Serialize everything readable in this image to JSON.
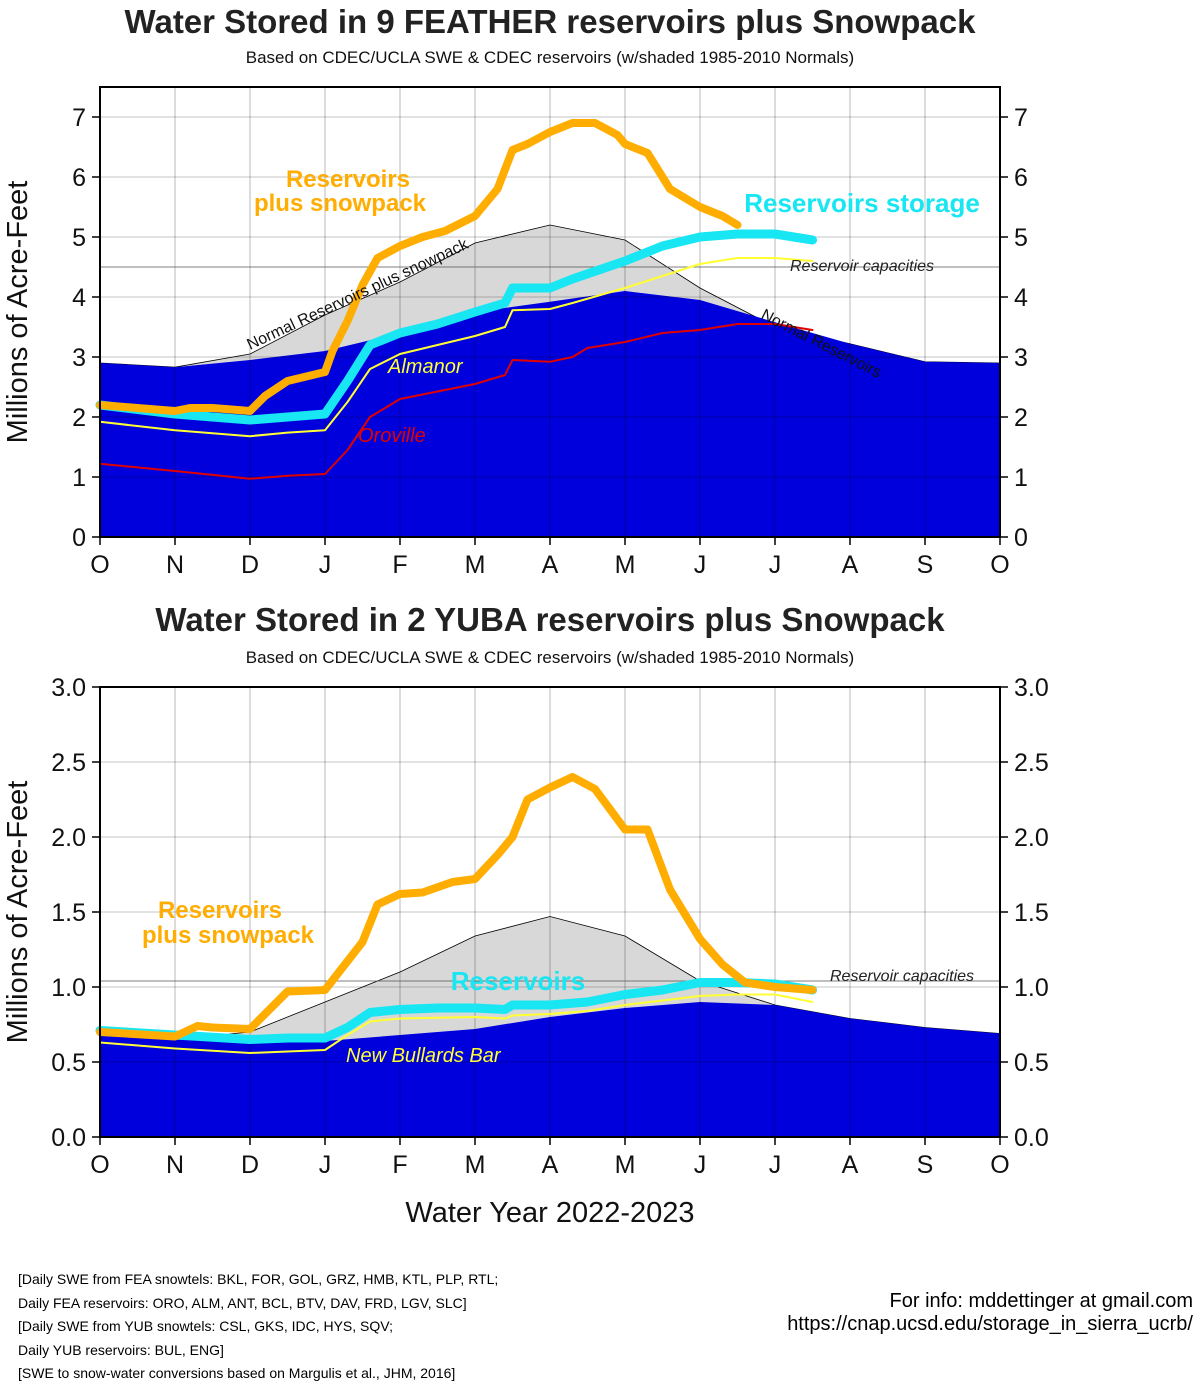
{
  "chart_data": [
    {
      "type": "area",
      "title": "Water Stored in 9 FEATHER reservoirs plus Snowpack",
      "subtitle": "Based on CDEC/UCLA SWE & CDEC reservoirs (w/shaded 1985-2010 Normals)",
      "ylabel": "Millions of Acre-Feet",
      "ylim": [
        0,
        7.5
      ],
      "yticks": [
        "0",
        "1",
        "2",
        "3",
        "4",
        "5",
        "6",
        "7"
      ],
      "xticks": [
        "O",
        "N",
        "D",
        "J",
        "F",
        "M",
        "A",
        "M",
        "J",
        "J",
        "A",
        "S",
        "O"
      ],
      "x_range_months": [
        0,
        12
      ],
      "capacity_value": 4.5,
      "grid": "on",
      "colors": {
        "normal_reservoirs": "#0000dd",
        "normal_plus_snow": "#d8d8d8",
        "plus_snowpack": "#ffad00",
        "storage": "#18e6f2",
        "main_reservoir": "#ffff33",
        "second_reservoir": "#e00000"
      },
      "series": [
        {
          "name": "Normal Reservoirs",
          "x": [
            0,
            1,
            2,
            3,
            4,
            5,
            6,
            7,
            8,
            9,
            10,
            11,
            12
          ],
          "values": [
            2.9,
            2.83,
            2.95,
            3.1,
            3.4,
            3.75,
            3.92,
            4.1,
            3.95,
            3.58,
            3.22,
            2.92,
            2.9
          ]
        },
        {
          "name": "Normal Reservoirs plus snowpack",
          "x": [
            0,
            1,
            2,
            3,
            4,
            5,
            6,
            7,
            8,
            9,
            10,
            11,
            12
          ],
          "values": [
            2.9,
            2.83,
            3.05,
            3.7,
            4.25,
            4.9,
            5.2,
            4.95,
            4.15,
            3.5,
            3.22,
            2.92,
            2.9
          ]
        },
        {
          "name": "Reservoirs plus snowpack",
          "x": [
            0,
            0.5,
            1,
            1.2,
            1.5,
            2,
            2.2,
            2.5,
            3,
            3.1,
            3.3,
            3.5,
            3.7,
            4,
            4.3,
            4.6,
            5,
            5.3,
            5.5,
            5.7,
            6,
            6.3,
            6.6,
            6.9,
            7,
            7.3,
            7.6,
            8,
            8.3,
            8.5
          ],
          "values": [
            2.2,
            2.15,
            2.1,
            2.15,
            2.15,
            2.1,
            2.35,
            2.6,
            2.75,
            3.1,
            3.6,
            4.2,
            4.65,
            4.85,
            5.0,
            5.1,
            5.35,
            5.8,
            6.45,
            6.55,
            6.75,
            6.9,
            6.9,
            6.7,
            6.55,
            6.4,
            5.8,
            5.5,
            5.35,
            5.2
          ]
        },
        {
          "name": "Reservoirs storage",
          "x": [
            0,
            1,
            2,
            2.5,
            3,
            3.3,
            3.6,
            4,
            4.5,
            5,
            5.4,
            5.5,
            6,
            6.3,
            7,
            7.5,
            8,
            8.5,
            9,
            9.5
          ],
          "values": [
            2.2,
            2.05,
            1.95,
            2.0,
            2.05,
            2.6,
            3.2,
            3.4,
            3.55,
            3.75,
            3.9,
            4.15,
            4.15,
            4.3,
            4.6,
            4.85,
            5.0,
            5.05,
            5.05,
            4.95
          ]
        },
        {
          "name": "Reservoir capacities",
          "x": [
            0,
            12
          ],
          "values": [
            4.5,
            4.5
          ]
        },
        {
          "name": "Almanor",
          "x": [
            0,
            1,
            2,
            2.5,
            3,
            3.3,
            3.6,
            4,
            5,
            5.4,
            5.5,
            6,
            6.3,
            7,
            7.5,
            8,
            8.5,
            9,
            9.5
          ],
          "values": [
            1.92,
            1.78,
            1.68,
            1.74,
            1.78,
            2.25,
            2.8,
            3.05,
            3.35,
            3.5,
            3.78,
            3.8,
            3.9,
            4.15,
            4.35,
            4.55,
            4.65,
            4.65,
            4.6
          ]
        },
        {
          "name": "Oroville",
          "x": [
            0,
            1,
            2,
            2.5,
            3,
            3.3,
            3.6,
            4,
            5,
            5.4,
            5.5,
            6,
            6.3,
            6.5,
            7,
            7.5,
            8,
            8.5,
            9,
            9.5
          ],
          "values": [
            1.22,
            1.1,
            0.97,
            1.02,
            1.05,
            1.45,
            2.0,
            2.3,
            2.55,
            2.7,
            2.95,
            2.92,
            3.0,
            3.15,
            3.25,
            3.4,
            3.45,
            3.55,
            3.55,
            3.45
          ]
        }
      ],
      "annotations": [
        "Reservoirs",
        "plus snowpack",
        "Reservoirs storage",
        "Reservoir capacities",
        "Normal Reservoirs plus snowpack",
        "Normal Reservoirs",
        "Almanor",
        "Oroville"
      ]
    },
    {
      "type": "area",
      "title": "Water Stored in 2 YUBA reservoirs plus Snowpack",
      "subtitle": "Based on CDEC/UCLA SWE & CDEC reservoirs (w/shaded 1985-2010 Normals)",
      "ylabel": "Millions of Acre-Feet",
      "xlabel": "Water Year 2022-2023",
      "ylim": [
        0,
        3.0
      ],
      "yticks": [
        "0.0",
        "0.5",
        "1.0",
        "1.5",
        "2.0",
        "2.5",
        "3.0"
      ],
      "xticks": [
        "O",
        "N",
        "D",
        "J",
        "F",
        "M",
        "A",
        "M",
        "J",
        "J",
        "A",
        "S",
        "O"
      ],
      "x_range_months": [
        0,
        12
      ],
      "capacity_value": 1.04,
      "grid": "on",
      "colors": {
        "normal_reservoirs": "#0000dd",
        "normal_plus_snow": "#d8d8d8",
        "plus_snowpack": "#ffad00",
        "storage": "#18e6f2",
        "main_reservoir": "#ffff33"
      },
      "series": [
        {
          "name": "Normal Reservoirs",
          "x": [
            0,
            1,
            2,
            3,
            4,
            5,
            6,
            7,
            8,
            9,
            10,
            11,
            12
          ],
          "values": [
            0.68,
            0.65,
            0.63,
            0.64,
            0.68,
            0.72,
            0.8,
            0.86,
            0.9,
            0.88,
            0.79,
            0.73,
            0.69
          ]
        },
        {
          "name": "Normal Reservoirs plus snowpack",
          "x": [
            0,
            1,
            2,
            3,
            4,
            5,
            6,
            7,
            8,
            9,
            10,
            11,
            12
          ],
          "values": [
            0.68,
            0.65,
            0.7,
            0.9,
            1.1,
            1.34,
            1.47,
            1.34,
            1.04,
            0.88,
            0.79,
            0.73,
            0.69
          ]
        },
        {
          "name": "Reservoirs plus snowpack",
          "x": [
            0,
            1,
            1.3,
            1.5,
            2,
            2.3,
            2.5,
            3,
            3.5,
            3.7,
            4,
            4.3,
            4.7,
            5,
            5.3,
            5.5,
            5.7,
            6,
            6.3,
            6.6,
            7,
            7.3,
            7.6,
            8,
            8.3,
            8.6,
            9,
            9.5
          ],
          "values": [
            0.7,
            0.67,
            0.74,
            0.73,
            0.72,
            0.87,
            0.97,
            0.98,
            1.3,
            1.55,
            1.62,
            1.63,
            1.7,
            1.72,
            1.88,
            2.0,
            2.25,
            2.33,
            2.4,
            2.32,
            2.05,
            2.05,
            1.65,
            1.32,
            1.15,
            1.03,
            1.0,
            0.98
          ]
        },
        {
          "name": "Reservoirs",
          "x": [
            0,
            1,
            2,
            2.5,
            3,
            3.3,
            3.6,
            4,
            4.5,
            5,
            5.4,
            5.5,
            6,
            6.5,
            7,
            7.5,
            8,
            8.5,
            9,
            9.5
          ],
          "values": [
            0.71,
            0.68,
            0.65,
            0.66,
            0.66,
            0.73,
            0.83,
            0.85,
            0.86,
            0.86,
            0.85,
            0.88,
            0.88,
            0.9,
            0.95,
            0.98,
            1.03,
            1.03,
            1.02,
            0.98
          ]
        },
        {
          "name": "Reservoir capacities",
          "x": [
            0,
            12
          ],
          "values": [
            1.04,
            1.04
          ]
        },
        {
          "name": "New Bullards Bar",
          "x": [
            0,
            1,
            2,
            2.5,
            3,
            3.3,
            3.6,
            4,
            5,
            5.4,
            5.5,
            6,
            6.5,
            7,
            7.5,
            8,
            8.5,
            9,
            9.5
          ],
          "values": [
            0.63,
            0.59,
            0.56,
            0.57,
            0.58,
            0.68,
            0.77,
            0.79,
            0.8,
            0.79,
            0.81,
            0.82,
            0.84,
            0.88,
            0.91,
            0.94,
            0.95,
            0.95,
            0.9
          ]
        }
      ],
      "annotations": [
        "Reservoirs",
        "plus snowpack",
        "Reservoirs",
        "Reservoir capacities",
        "New Bullards Bar"
      ]
    }
  ],
  "footer": {
    "credits": [
      "[Daily SWE from FEA snowtels: BKL, FOR, GOL, GRZ, HMB, KTL, PLP, RTL;",
      "Daily FEA reservoirs: ORO, ALM, ANT, BCL, BTV, DAV, FRD, LGV, SLC]",
      "[Daily SWE from YUB snowtels: CSL, GKS, IDC, HYS, SQV;",
      "Daily YUB reservoirs: BUL, ENG]",
      "[SWE to snow-water conversions based on Margulis et al., JHM, 2016]"
    ],
    "contact": [
      "For info: mddettinger at gmail.com",
      "https://cnap.ucsd.edu/storage_in_sierra_ucrb/"
    ]
  }
}
